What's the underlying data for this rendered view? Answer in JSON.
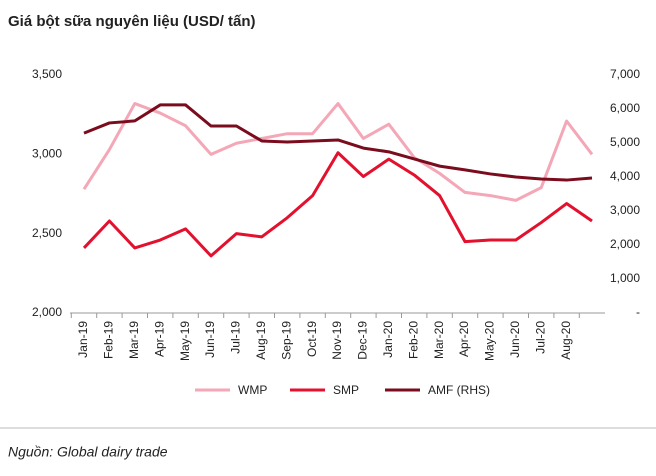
{
  "chart_data": {
    "type": "line",
    "title": "Giá bột sữa nguyên liệu (USD/ tấn)",
    "source": "Nguồn: Global dairy trade",
    "categories": [
      "Jan-19",
      "Feb-19",
      "Mar-19",
      "Apr-19",
      "May-19",
      "Jun-19",
      "Jul-19",
      "Aug-19",
      "Sep-19",
      "Oct-19",
      "Nov-19",
      "Dec-19",
      "Jan-20",
      "Feb-20",
      "Mar-20",
      "Apr-20",
      "May-20",
      "Jun-20",
      "Jul-20",
      "Aug-20",
      null
    ],
    "series": [
      {
        "name": "WMP",
        "color": "#f4a7b6",
        "values": [
          2780,
          3030,
          3320,
          3260,
          3180,
          3000,
          3070,
          3100,
          3130,
          3130,
          3320,
          3100,
          3190,
          2980,
          2880,
          2760,
          2740,
          2710,
          2790,
          3210,
          3000
        ]
      },
      {
        "name": "SMP",
        "color": "#e3102e",
        "values": [
          2410,
          2580,
          2410,
          2460,
          2530,
          2360,
          2500,
          2480,
          2600,
          2740,
          3010,
          2860,
          2970,
          2870,
          2740,
          2450,
          2460,
          2460,
          2570,
          2690,
          2580
        ]
      },
      {
        "name": "AMF (RHS)",
        "color": "#7a0c1e",
        "axis": "y2",
        "values": [
          5290,
          5590,
          5650,
          6120,
          6120,
          5500,
          5500,
          5060,
          5030,
          5060,
          5090,
          4850,
          4740,
          4530,
          4320,
          4210,
          4090,
          4000,
          3940,
          3910,
          3970
        ]
      }
    ],
    "ylim": [
      2000,
      3500
    ],
    "yticks": [
      {
        "value": 2000,
        "label": "2,000"
      },
      {
        "value": 2500,
        "label": "2,500"
      },
      {
        "value": 3000,
        "label": "3,000"
      },
      {
        "value": 3500,
        "label": "3,500"
      }
    ],
    "y2lim": [
      0,
      7000
    ],
    "y2ticks": [
      {
        "value": 0,
        "label": "-"
      },
      {
        "value": 1000,
        "label": "1,000"
      },
      {
        "value": 2000,
        "label": "2,000"
      },
      {
        "value": 3000,
        "label": "3,000"
      },
      {
        "value": 4000,
        "label": "4,000"
      },
      {
        "value": 5000,
        "label": "5,000"
      },
      {
        "value": 6000,
        "label": "6,000"
      },
      {
        "value": 7000,
        "label": "7,000"
      }
    ],
    "legend": "bottom"
  }
}
